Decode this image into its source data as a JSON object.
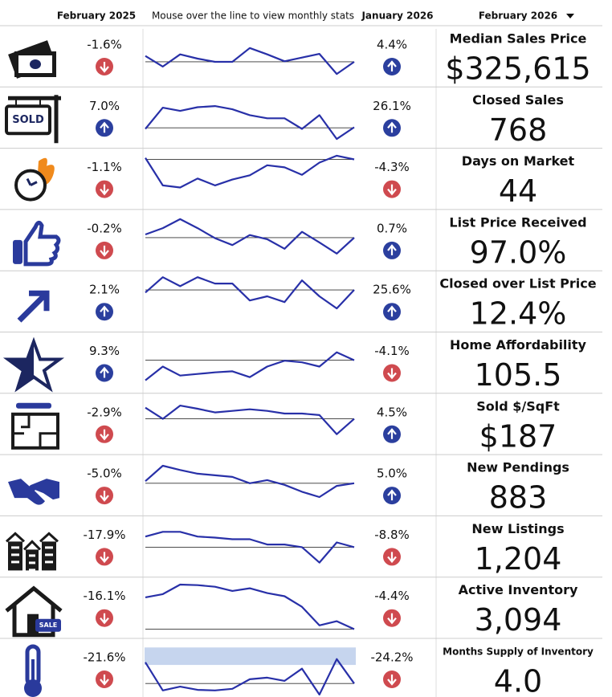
{
  "header": {
    "col_prev_year": "February 2025",
    "hint": "Mouse over the line to view monthly stats",
    "col_prev_month": "January 2026",
    "col_current": "February 2026"
  },
  "rows": [
    {
      "title": "Median Sales Price",
      "value": "$325,615",
      "yoy": "-1.6%",
      "yoy_dir": "down",
      "mom": "4.4%",
      "mom_dir": "up",
      "spark": [
        55,
        35,
        58,
        50,
        44,
        44,
        70,
        58,
        45,
        52,
        59,
        21,
        44
      ],
      "ref": 44
    },
    {
      "title": "Closed Sales",
      "value": "768",
      "yoy": "7.0%",
      "yoy_dir": "up",
      "mom": "26.1%",
      "mom_dir": "up",
      "spark": [
        33,
        73,
        67,
        74,
        76,
        70,
        59,
        53,
        53,
        33,
        59,
        14,
        36
      ],
      "ref": 35,
      "icon_text": "SOLD"
    },
    {
      "title": "Days on Market",
      "value": "44",
      "yoy": "-1.1%",
      "yoy_dir": "down",
      "mom": "-4.3%",
      "mom_dir": "down",
      "spark": [
        94,
        42,
        38,
        55,
        42,
        53,
        61,
        80,
        76,
        62,
        85,
        98,
        91
      ],
      "ref": 91
    },
    {
      "title": "List Price Received",
      "value": "97.0%",
      "yoy": "-0.2%",
      "yoy_dir": "down",
      "mom": "0.7%",
      "mom_dir": "up",
      "spark": [
        65,
        77,
        94,
        77,
        58,
        45,
        64,
        56,
        38,
        70,
        50,
        29,
        59
      ],
      "ref": 59
    },
    {
      "title": "Closed over List Price",
      "value": "12.4%",
      "yoy": "2.1%",
      "yoy_dir": "up",
      "mom": "25.6%",
      "mom_dir": "up",
      "spark": [
        71,
        100,
        83,
        100,
        88,
        88,
        56,
        64,
        53,
        94,
        64,
        41,
        76
      ],
      "ref": 76
    },
    {
      "title": "Home Affordability",
      "value": "105.5",
      "yoy": "9.3%",
      "yoy_dir": "up",
      "mom": "-4.1%",
      "mom_dir": "down",
      "spark": [
        21,
        47,
        30,
        33,
        36,
        38,
        27,
        47,
        58,
        55,
        47,
        74,
        59
      ],
      "ref": 59
    },
    {
      "title": "Sold $/SqFt",
      "value": "$187",
      "yoy": "-2.9%",
      "yoy_dir": "down",
      "mom": "4.5%",
      "mom_dir": "up",
      "spark": [
        85,
        64,
        89,
        83,
        76,
        79,
        82,
        79,
        74,
        74,
        71,
        35,
        64
      ],
      "ref": 64
    },
    {
      "title": "New Pendings",
      "value": "883",
      "yoy": "-5.0%",
      "yoy_dir": "down",
      "mom": "5.0%",
      "mom_dir": "up",
      "spark": [
        62,
        91,
        83,
        76,
        73,
        70,
        58,
        64,
        55,
        42,
        32,
        53,
        58
      ],
      "ref": 58
    },
    {
      "title": "New Listings",
      "value": "1,204",
      "yoy": "-17.9%",
      "yoy_dir": "down",
      "mom": "-8.8%",
      "mom_dir": "down",
      "spark": [
        73,
        82,
        82,
        73,
        71,
        68,
        68,
        58,
        58,
        53,
        24,
        62,
        53
      ],
      "ref": 53
    },
    {
      "title": "Active Inventory",
      "value": "3,094",
      "yoy": "-16.1%",
      "yoy_dir": "down",
      "mom": "-4.4%",
      "mom_dir": "down",
      "spark": [
        74,
        80,
        98,
        97,
        94,
        86,
        91,
        82,
        76,
        56,
        21,
        29,
        14
      ],
      "ref": 14,
      "icon_text": "SALE"
    },
    {
      "title": "Months Supply of Inventory",
      "value": "4.0",
      "yoy": "-21.6%",
      "yoy_dir": "down",
      "mom": "-24.2%",
      "mom_dir": "down",
      "spark": [
        67,
        14,
        21,
        15,
        14,
        17,
        35,
        38,
        32,
        55,
        6,
        73,
        27
      ],
      "ref": 27,
      "band": [
        62,
        95
      ]
    }
  ]
}
